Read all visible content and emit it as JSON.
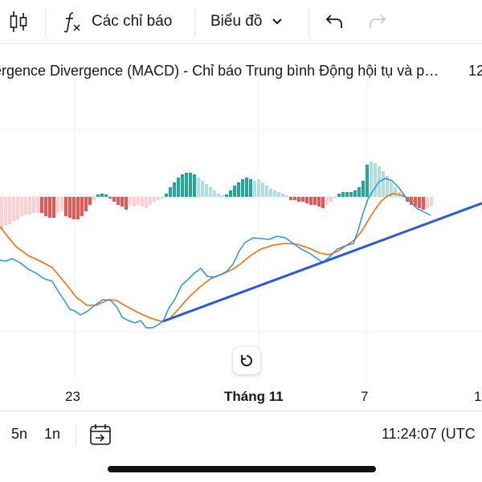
{
  "toolbar": {
    "indicators_label": "Các chỉ báo",
    "chart_type_label": "Biểu đồ",
    "icons": [
      "candlestick-icon",
      "function-icon",
      "chevron-down-icon",
      "undo-icon",
      "redo-icon"
    ]
  },
  "indicator": {
    "title": "ergence Divergence (MACD) - Chỉ báo Trung bình Động hội tụ và p…",
    "right_text": "12"
  },
  "x_axis": {
    "ticks": [
      "23",
      "Tháng 11",
      "7",
      "1"
    ]
  },
  "bottom_bar": {
    "range_5n": "5n",
    "range_1n": "1n",
    "time": "11:24:07 (UTC"
  },
  "colors": {
    "macd_line": "#2196f3",
    "signal_line": "#ff6d00",
    "hist_pos_strong": "#26a69a",
    "hist_pos_weak": "#b2dfdb",
    "hist_neg_strong": "#ef5350",
    "hist_neg_weak": "#ffcdd2",
    "trend_line": "#2a5bd7"
  }
}
